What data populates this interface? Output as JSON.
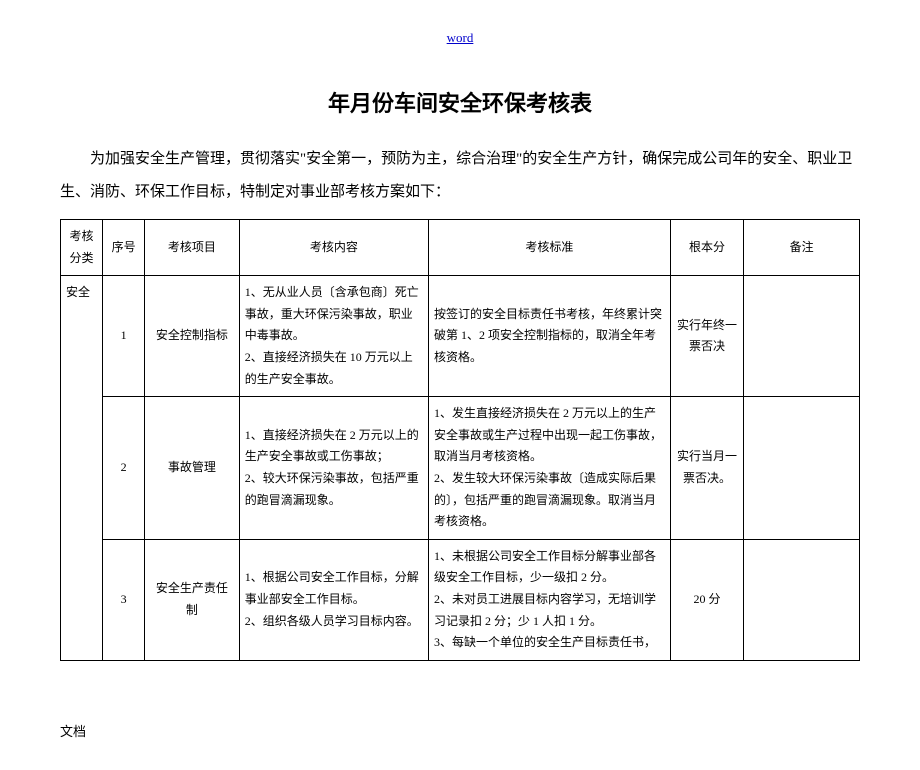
{
  "header_link": "word",
  "title": "年月份车间安全环保考核表",
  "intro": "为加强安全生产管理，贯彻落实\"安全第一，预防为主，综合治理\"的安全生产方针，确保完成公司年的安全、职业卫生、消防、环保工作目标，特制定对事业部考核方案如下：",
  "headers": {
    "category": "考核分类",
    "seq": "序号",
    "item": "考核项目",
    "content": "考核内容",
    "standard": "考核标准",
    "score": "根本分",
    "remark": "备注"
  },
  "category": "安全",
  "rows": [
    {
      "seq": "1",
      "item": "安全控制指标",
      "content": "1、无从业人员〔含承包商〕死亡事故，重大环保污染事故，职业中毒事故。\n2、直接经济损失在 10 万元以上的生产安全事故。",
      "standard": "按签订的安全目标责任书考核，年终累计突破第 1、2 项安全控制指标的，取消全年考核资格。",
      "score": "实行年终一票否决",
      "remark": ""
    },
    {
      "seq": "2",
      "item": "事故管理",
      "content": "1、直接经济损失在 2 万元以上的生产安全事故或工伤事故；\n2、较大环保污染事故，包括严重的跑冒滴漏现象。",
      "standard": "1、发生直接经济损失在 2 万元以上的生产安全事故或生产过程中出现一起工伤事故，取消当月考核资格。\n2、发生较大环保污染事故〔造成实际后果的〕，包括严重的跑冒滴漏现象。取消当月考核资格。",
      "score": "实行当月一票否决。",
      "remark": ""
    },
    {
      "seq": "3",
      "item": "安全生产责任制",
      "content": "1、根据公司安全工作目标，分解事业部安全工作目标。\n2、组织各级人员学习目标内容。",
      "standard": "1、未根据公司安全工作目标分解事业部各级安全工作目标，少一级扣 2 分。\n2、未对员工进展目标内容学习，无培训学习记录扣 2 分；少 1 人扣 1 分。\n3、每缺一个单位的安全生产目标责任书，",
      "score": "20 分",
      "remark": ""
    }
  ],
  "footer": "文档"
}
